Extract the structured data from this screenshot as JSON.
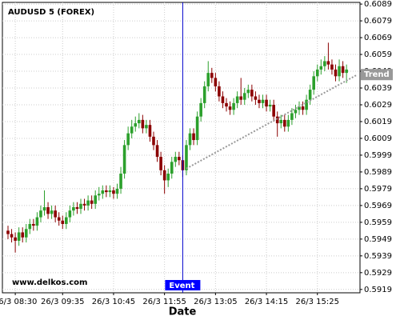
{
  "chart_data": {
    "type": "candlestick",
    "title": "AUDUSD 5 (FOREX)",
    "x_label": "Date",
    "watermark": "www.delkos.com",
    "categories": [
      null,
      null,
      "26/3 08:30",
      null,
      null,
      null,
      null,
      null,
      null,
      null,
      null,
      null,
      null,
      null,
      null,
      "26/3 09:35",
      null,
      null,
      null,
      null,
      null,
      null,
      null,
      null,
      null,
      null,
      null,
      null,
      null,
      "26/3 10:45",
      null,
      null,
      null,
      null,
      null,
      null,
      null,
      null,
      null,
      null,
      null,
      null,
      null,
      "26/3 11:55",
      null,
      null,
      null,
      null,
      null,
      null,
      null,
      null,
      null,
      null,
      null,
      null,
      null,
      "26/3 13:05",
      null,
      null,
      null,
      null,
      null,
      null,
      null,
      null,
      null,
      null,
      null,
      null,
      null,
      "26/3 14:15",
      null,
      null,
      null,
      null,
      null,
      null,
      null,
      null,
      null,
      null,
      null,
      null,
      null,
      "26/3 15:25",
      null,
      null,
      null,
      null,
      null,
      null,
      null,
      null
    ],
    "open": [
      0.5954,
      0.5952,
      0.595,
      0.5948,
      0.5953,
      0.595,
      0.5955,
      0.5958,
      0.5957,
      0.5962,
      0.5966,
      0.5968,
      0.5964,
      0.5966,
      0.5962,
      0.596,
      0.5958,
      0.5962,
      0.5966,
      0.5968,
      0.5967,
      0.597,
      0.5969,
      0.5972,
      0.597,
      0.5975,
      0.5976,
      0.5978,
      0.5977,
      0.5978,
      0.5976,
      0.5979,
      0.5988,
      0.6005,
      0.6012,
      0.6016,
      0.6018,
      0.602,
      0.6015,
      0.6017,
      0.601,
      0.6005,
      0.5998,
      0.599,
      0.5984,
      0.5988,
      0.5995,
      0.5998,
      0.5996,
      0.599,
      0.6005,
      0.6012,
      0.6008,
      0.6022,
      0.603,
      0.604,
      0.6048,
      0.6045,
      0.604,
      0.6034,
      0.603,
      0.6028,
      0.6026,
      0.603,
      0.6034,
      0.6032,
      0.6036,
      0.6038,
      0.6034,
      0.6032,
      0.603,
      0.6032,
      0.6028,
      0.6029,
      0.6022,
      0.6018,
      0.602,
      0.6016,
      0.602,
      0.6024,
      0.6026,
      0.6028,
      0.6026,
      0.6032,
      0.6038,
      0.6046,
      0.605,
      0.6052,
      0.6055,
      0.6053,
      0.605,
      0.6046,
      0.6052,
      0.6048
    ],
    "high": [
      0.5957,
      0.5955,
      0.5953,
      0.5956,
      0.5956,
      0.5958,
      0.5961,
      0.5961,
      0.5965,
      0.5969,
      0.5978,
      0.5971,
      0.5969,
      0.5969,
      0.5965,
      0.5963,
      0.5965,
      0.5969,
      0.5971,
      0.5971,
      0.5973,
      0.5973,
      0.5975,
      0.5975,
      0.5978,
      0.598,
      0.5981,
      0.5981,
      0.5981,
      0.598,
      0.5982,
      0.5992,
      0.6008,
      0.6016,
      0.602,
      0.6022,
      0.6024,
      0.6023,
      0.602,
      0.602,
      0.6013,
      0.6008,
      0.6001,
      0.5993,
      0.5991,
      0.5998,
      0.6001,
      0.6001,
      0.5999,
      0.6008,
      0.6015,
      0.6015,
      0.6025,
      0.6033,
      0.6043,
      0.6055,
      0.6051,
      0.6048,
      0.6043,
      0.6037,
      0.6033,
      0.6031,
      0.6033,
      0.6037,
      0.6045,
      0.6039,
      0.6041,
      0.6041,
      0.6037,
      0.6035,
      0.6035,
      0.6035,
      0.6032,
      0.6032,
      0.6025,
      0.6023,
      0.6023,
      0.6023,
      0.6027,
      0.6029,
      0.6031,
      0.6031,
      0.6035,
      0.6041,
      0.6049,
      0.6053,
      0.6056,
      0.6058,
      0.6066,
      0.6056,
      0.6053,
      0.6056,
      0.6055,
      0.6053
    ],
    "low": [
      0.5949,
      0.5947,
      0.5941,
      0.5945,
      0.5947,
      0.5947,
      0.5952,
      0.5954,
      0.5954,
      0.5959,
      0.5963,
      0.5961,
      0.5961,
      0.5959,
      0.5957,
      0.5955,
      0.5955,
      0.5959,
      0.5963,
      0.5964,
      0.5964,
      0.5966,
      0.5966,
      0.5967,
      0.5967,
      0.5972,
      0.5973,
      0.5974,
      0.5974,
      0.5973,
      0.5973,
      0.5976,
      0.5985,
      0.6002,
      0.6009,
      0.6013,
      0.6015,
      0.6012,
      0.6012,
      0.6007,
      0.6002,
      0.5995,
      0.5987,
      0.5976,
      0.598,
      0.5985,
      0.5992,
      0.5993,
      0.5986,
      0.5987,
      0.6002,
      0.6005,
      0.6005,
      0.6019,
      0.6027,
      0.6037,
      0.6042,
      0.6037,
      0.6031,
      0.6027,
      0.6025,
      0.6023,
      0.6023,
      0.6027,
      0.6029,
      0.6029,
      0.6033,
      0.6031,
      0.6029,
      0.6027,
      0.6027,
      0.6025,
      0.6025,
      0.6019,
      0.601,
      0.6015,
      0.6013,
      0.6013,
      0.6017,
      0.6021,
      0.6023,
      0.6023,
      0.6023,
      0.6029,
      0.6035,
      0.6043,
      0.6047,
      0.6049,
      0.605,
      0.6047,
      0.6043,
      0.6043,
      0.6045,
      0.6042
    ],
    "close": [
      0.5952,
      0.595,
      0.5948,
      0.5953,
      0.595,
      0.5955,
      0.5958,
      0.5957,
      0.5962,
      0.5966,
      0.5968,
      0.5964,
      0.5966,
      0.5962,
      0.596,
      0.5958,
      0.5962,
      0.5966,
      0.5968,
      0.5967,
      0.597,
      0.5969,
      0.5972,
      0.597,
      0.5975,
      0.5976,
      0.5978,
      0.5977,
      0.5978,
      0.5976,
      0.5979,
      0.5988,
      0.6005,
      0.6012,
      0.6016,
      0.6018,
      0.602,
      0.6015,
      0.6017,
      0.601,
      0.6005,
      0.5998,
      0.599,
      0.5984,
      0.5988,
      0.5995,
      0.5998,
      0.5996,
      0.599,
      0.6005,
      0.6012,
      0.6008,
      0.6022,
      0.603,
      0.604,
      0.6048,
      0.6045,
      0.604,
      0.6034,
      0.603,
      0.6028,
      0.6026,
      0.603,
      0.6034,
      0.6032,
      0.6036,
      0.6038,
      0.6034,
      0.6032,
      0.603,
      0.6032,
      0.6028,
      0.6029,
      0.6022,
      0.6018,
      0.602,
      0.6016,
      0.602,
      0.6024,
      0.6026,
      0.6028,
      0.6026,
      0.6032,
      0.6038,
      0.6046,
      0.605,
      0.6052,
      0.6055,
      0.6053,
      0.605,
      0.6046,
      0.6052,
      0.6048,
      0.605
    ],
    "up_color": "#2ca02c",
    "down_color": "#8b0000",
    "ylim": [
      0.5917,
      0.609
    ],
    "yticks": [
      0.5919,
      0.5929,
      0.5939,
      0.5949,
      0.5959,
      0.5969,
      0.5979,
      0.5989,
      0.5999,
      0.6009,
      0.6019,
      0.6029,
      0.6039,
      0.6049,
      0.6059,
      0.6069,
      0.6079,
      0.6089
    ],
    "grid": true,
    "event": {
      "label": "Event",
      "index": 48,
      "color": "#0000cc"
    },
    "trend": {
      "label": "Trend",
      "start_index": 49,
      "start_value": 0.5991,
      "end_index": 96,
      "end_value": 0.6047,
      "color": "#999999"
    }
  }
}
